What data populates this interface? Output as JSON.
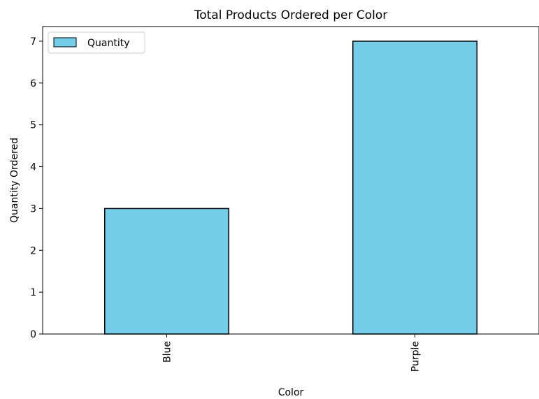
{
  "chart_data": {
    "type": "bar",
    "title": "Total Products Ordered per Color",
    "xlabel": "Color",
    "ylabel": "Quantity Ordered",
    "categories": [
      "Blue",
      "Purple"
    ],
    "series": [
      {
        "name": "Quantity",
        "values": [
          3,
          7
        ]
      }
    ],
    "ylim": [
      0,
      7.35
    ],
    "yticks": [
      "0",
      "1",
      "2",
      "3",
      "4",
      "5",
      "6",
      "7"
    ],
    "bar_color": "#73cde8",
    "bar_edge_color": "#000000",
    "grid": false,
    "legend_position": "top-left",
    "x_tick_rotation": "vertical"
  }
}
